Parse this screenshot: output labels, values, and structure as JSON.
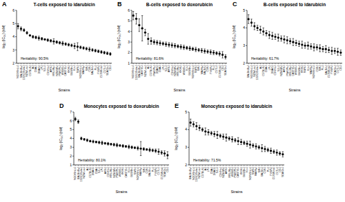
{
  "chart_data": [
    {
      "type": "scatter",
      "panel_label": "A",
      "title": "T-cells exposed to idarubicin",
      "x_label": "Strains",
      "y_label": "log₂ (IC₅₀) (nM)",
      "annotation": "Heritability: 90.5%",
      "categories": [
        "NOD/ShiLtJ",
        "BALB/cByJ",
        "129S1/SvImJ",
        "NZW/LacJ",
        "C57BL/6J",
        "A/J",
        "CBA/J",
        "DBA/2J",
        "LP/J",
        "SJL/J",
        "C3H/HeJ",
        "AKR/J",
        "MRL/MpJ",
        "NZB/BlNJ",
        "PWK/PhJ",
        "WSB/EiJ",
        "CAST/EiJ",
        "KK/HlJ",
        "BUB/BnJ",
        "I/LnJ",
        "SWR/J",
        "NON/ShiLtJ",
        "MA/MyJ",
        "SM/J",
        "C58/J",
        "BALB/cJ",
        "PL/J",
        "FVB/NJ",
        "C57BR/cdJ",
        "C57L/J",
        "SEA/GnJ",
        "CE/J"
      ],
      "values": [
        4.8,
        4.6,
        4.5,
        4.3,
        4.1,
        4.0,
        3.95,
        3.9,
        3.85,
        3.8,
        3.75,
        3.7,
        3.65,
        3.6,
        3.55,
        3.5,
        3.45,
        3.4,
        3.35,
        3.3,
        3.25,
        3.2,
        3.15,
        3.1,
        3.05,
        3.0,
        2.95,
        2.9,
        2.85,
        2.8,
        2.75,
        2.7
      ],
      "errors": [
        0.2,
        0.15,
        0.1,
        0.1,
        0.05,
        0.1,
        0.1,
        0.15,
        0.1,
        0.05,
        0.1,
        0.1,
        0.2,
        0.1,
        0.1,
        0.15,
        0.1,
        0.1,
        0.1,
        0.2,
        0.3,
        0.1,
        0.1,
        0.1,
        0.15,
        0.1,
        0.1,
        0.1,
        0.1,
        0.1,
        0.1,
        0.1
      ],
      "color": "#000000",
      "marker": "circle",
      "ylim": [
        2,
        6
      ],
      "yticks": [
        2,
        3,
        4,
        5,
        6
      ]
    },
    {
      "type": "scatter",
      "panel_label": "B",
      "title": "B-cells exposed to doxorubicin",
      "x_label": "Strains",
      "y_label": "log₂ (IC₅₀) (nM)",
      "annotation": "Heritability: 81.6%",
      "categories": [
        "NOD/ShiLtJ",
        "129S1/SvImJ",
        "BALB/cByJ",
        "CAST/EiJ",
        "NZW/LacJ",
        "A/J",
        "C57BL/6J",
        "PWK/PhJ",
        "DBA/2J",
        "CBA/J",
        "LP/J",
        "SJL/J",
        "AKR/J",
        "C3H/HeJ",
        "NZB/BlNJ",
        "MRL/MpJ",
        "KK/HlJ",
        "WSB/EiJ",
        "I/LnJ",
        "BUB/BnJ",
        "NON/ShiLtJ",
        "SWR/J",
        "SM/J",
        "MA/MyJ",
        "BALB/cJ",
        "C58/J",
        "FVB/NJ",
        "PL/J",
        "C57L/J",
        "C57BR/cdJ",
        "CE/J",
        "SEA/GnJ"
      ],
      "values": [
        5.5,
        5.2,
        4.6,
        4.3,
        3.9,
        3.3,
        3.1,
        3.0,
        2.95,
        2.9,
        2.85,
        2.8,
        2.75,
        2.7,
        2.65,
        2.6,
        2.55,
        2.5,
        2.45,
        2.4,
        2.35,
        2.3,
        2.25,
        2.2,
        2.15,
        2.1,
        2.05,
        2.0,
        1.95,
        1.9,
        1.8,
        1.6
      ],
      "errors": [
        0.4,
        0.5,
        0.6,
        1.2,
        0.3,
        0.5,
        0.3,
        0.2,
        0.2,
        0.2,
        0.15,
        0.2,
        0.2,
        0.2,
        0.2,
        0.15,
        0.2,
        0.2,
        0.15,
        0.2,
        0.15,
        0.2,
        0.15,
        0.2,
        0.2,
        0.15,
        0.2,
        0.2,
        0.15,
        0.2,
        0.3,
        0.2
      ],
      "color": "#000000",
      "marker": "circle",
      "ylim": [
        1,
        6
      ],
      "yticks": [
        1,
        2,
        3,
        4,
        5,
        6
      ]
    },
    {
      "type": "scatter",
      "panel_label": "C",
      "title": "B-cells exposed to idarubicin",
      "x_label": "Strains",
      "y_label": "log₂ (IC₅₀) (nM)",
      "annotation": "Heritability: 61.7%",
      "categories": [
        "BALB/cByJ",
        "NOD/ShiLtJ",
        "NZW/LacJ",
        "129S1/SvImJ",
        "A/J",
        "C57BL/6J",
        "CBA/J",
        "LP/J",
        "DBA/2J",
        "C3H/HeJ",
        "SJL/J",
        "NZB/BlNJ",
        "AKR/J",
        "PWK/PhJ",
        "MRL/MpJ",
        "CAST/EiJ",
        "WSB/EiJ",
        "BUB/BnJ",
        "KK/HlJ",
        "SWR/J",
        "I/LnJ",
        "MA/MyJ",
        "NON/ShiLtJ",
        "C58/J",
        "SM/J",
        "PL/J",
        "BALB/cJ",
        "C57BR/cdJ",
        "FVB/NJ",
        "SEA/GnJ",
        "C57L/J",
        "CE/J"
      ],
      "values": [
        4.5,
        4.3,
        4.1,
        4.0,
        3.9,
        3.8,
        3.7,
        3.6,
        3.55,
        3.5,
        3.45,
        3.4,
        3.35,
        3.3,
        3.25,
        3.2,
        3.15,
        3.1,
        3.05,
        3.0,
        3.0,
        2.95,
        2.9,
        2.9,
        2.85,
        2.8,
        2.8,
        2.75,
        2.7,
        2.7,
        2.65,
        2.6
      ],
      "errors": [
        0.25,
        0.2,
        0.2,
        0.15,
        0.2,
        0.2,
        0.15,
        0.2,
        0.2,
        0.15,
        0.2,
        0.15,
        0.2,
        0.2,
        0.15,
        0.2,
        0.15,
        0.15,
        0.2,
        0.15,
        0.2,
        0.15,
        0.2,
        0.15,
        0.2,
        0.15,
        0.2,
        0.15,
        0.2,
        0.15,
        0.2,
        0.15
      ],
      "color": "#000000",
      "marker": "circle",
      "ylim": [
        2,
        5
      ],
      "yticks": [
        2,
        3,
        4,
        5
      ]
    },
    {
      "type": "scatter",
      "panel_label": "D",
      "title": "Monocytes exposed to doxorubicin",
      "x_label": "Strains",
      "y_label": "log₂ (IC₅₀) (nM)",
      "annotation": "Heritability: 80.1%",
      "categories": [
        "NOD/ShiLtJ",
        "BALB/cByJ",
        "129S1/SvImJ",
        "NZW/LacJ",
        "A/J",
        "C57BL/6J",
        "DBA/2J",
        "CBA/J",
        "SJL/J",
        "LP/J",
        "AKR/J",
        "C3H/HeJ",
        "MRL/MpJ",
        "NZB/BlNJ",
        "PWK/PhJ",
        "WSB/EiJ",
        "KK/HlJ",
        "CAST/EiJ",
        "I/LnJ",
        "BUB/BnJ",
        "SWR/J",
        "NON/ShiLtJ",
        "MA/MyJ",
        "SM/J",
        "C58/J",
        "BALB/cJ",
        "PL/J",
        "FVB/NJ",
        "C57L/J",
        "C57BR/cdJ",
        "SEA/GnJ",
        "CE/J"
      ],
      "values": [
        6.2,
        5.9,
        4.0,
        3.9,
        3.8,
        3.7,
        3.65,
        3.6,
        3.55,
        3.5,
        3.45,
        3.4,
        3.35,
        3.3,
        3.25,
        3.2,
        3.15,
        3.1,
        3.05,
        3.0,
        2.95,
        2.9,
        2.85,
        2.8,
        2.75,
        2.7,
        2.65,
        2.6,
        2.5,
        2.4,
        2.3,
        2.1
      ],
      "errors": [
        0.2,
        0.2,
        0.15,
        0.1,
        0.15,
        0.1,
        0.15,
        0.1,
        0.15,
        0.2,
        0.1,
        0.15,
        0.1,
        0.15,
        0.2,
        0.1,
        0.15,
        0.1,
        0.2,
        0.15,
        0.1,
        0.2,
        0.8,
        0.15,
        0.1,
        0.2,
        0.15,
        0.2,
        0.3,
        0.2,
        0.3,
        0.4
      ],
      "color": "#000000",
      "marker": "circle",
      "ylim": [
        1,
        7
      ],
      "yticks": [
        1,
        2,
        3,
        4,
        5,
        6,
        7
      ]
    },
    {
      "type": "scatter",
      "panel_label": "E",
      "title": "Monocytes exposed to idarubicin",
      "x_label": "Strains",
      "y_label": "log₂ (IC₅₀) (nM)",
      "annotation": "Heritability: 71.5%",
      "categories": [
        "BALB/cByJ",
        "NOD/ShiLtJ",
        "129S1/SvImJ",
        "NZW/LacJ",
        "C57BL/6J",
        "A/J",
        "LP/J",
        "CBA/J",
        "DBA/2J",
        "SJL/J",
        "C3H/HeJ",
        "NZB/BlNJ",
        "AKR/J",
        "MRL/MpJ",
        "WSB/EiJ",
        "PWK/PhJ",
        "CAST/EiJ",
        "KK/HlJ",
        "BUB/BnJ",
        "I/LnJ",
        "NON/ShiLtJ",
        "SWR/J",
        "MA/MyJ",
        "SM/J",
        "BALB/cJ",
        "C58/J",
        "PL/J",
        "FVB/NJ",
        "C57BR/cdJ",
        "C57L/J",
        "CE/J",
        "SEA/GnJ"
      ],
      "values": [
        4.4,
        4.3,
        4.2,
        4.1,
        4.0,
        3.9,
        3.85,
        3.8,
        3.75,
        3.7,
        3.65,
        3.6,
        3.55,
        3.5,
        3.45,
        3.4,
        3.35,
        3.3,
        3.25,
        3.2,
        3.15,
        3.1,
        3.05,
        3.0,
        2.95,
        2.9,
        2.85,
        2.8,
        2.75,
        2.7,
        2.65,
        2.6
      ],
      "errors": [
        0.2,
        0.15,
        0.2,
        0.15,
        0.1,
        0.2,
        0.15,
        0.1,
        0.15,
        0.2,
        0.1,
        0.15,
        0.2,
        0.1,
        0.15,
        0.1,
        0.2,
        0.15,
        0.1,
        0.15,
        0.2,
        0.1,
        0.15,
        0.1,
        0.2,
        0.15,
        0.1,
        0.15,
        0.1,
        0.15,
        0.1,
        0.15
      ],
      "color": "#000000",
      "marker": "circle",
      "ylim": [
        2,
        5
      ],
      "yticks": [
        2,
        3,
        4,
        5
      ]
    }
  ]
}
